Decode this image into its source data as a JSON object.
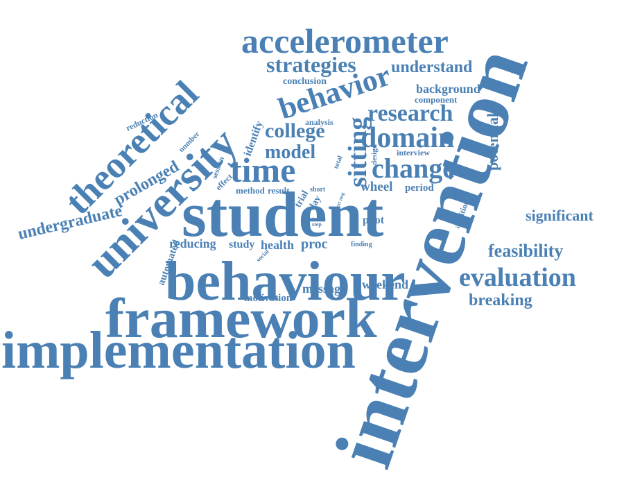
{
  "color": "#4a80b4",
  "words": [
    "accelerometer",
    "strategies",
    "understand",
    "conclusion",
    "behavior",
    "background",
    "component",
    "research",
    "college",
    "domain",
    "model",
    "change",
    "time",
    "sitting",
    "potential",
    "interview",
    "design",
    "analysis",
    "identify",
    "reduction",
    "number",
    "theoretical",
    "university",
    "prolonged",
    "session",
    "effect",
    "total",
    "wheel",
    "period",
    "method",
    "result",
    "short",
    "trial",
    "day",
    "text msg",
    "term",
    "step",
    "student",
    "pilot",
    "addition",
    "undergraduate",
    "significant",
    "feasibility",
    "reducing",
    "study",
    "health",
    "proc",
    "finding",
    "automated",
    "social",
    "behaviour",
    "evaluation",
    "message",
    "weekend",
    "motivation",
    "breaking",
    "framework",
    "implementation",
    "intervention"
  ]
}
